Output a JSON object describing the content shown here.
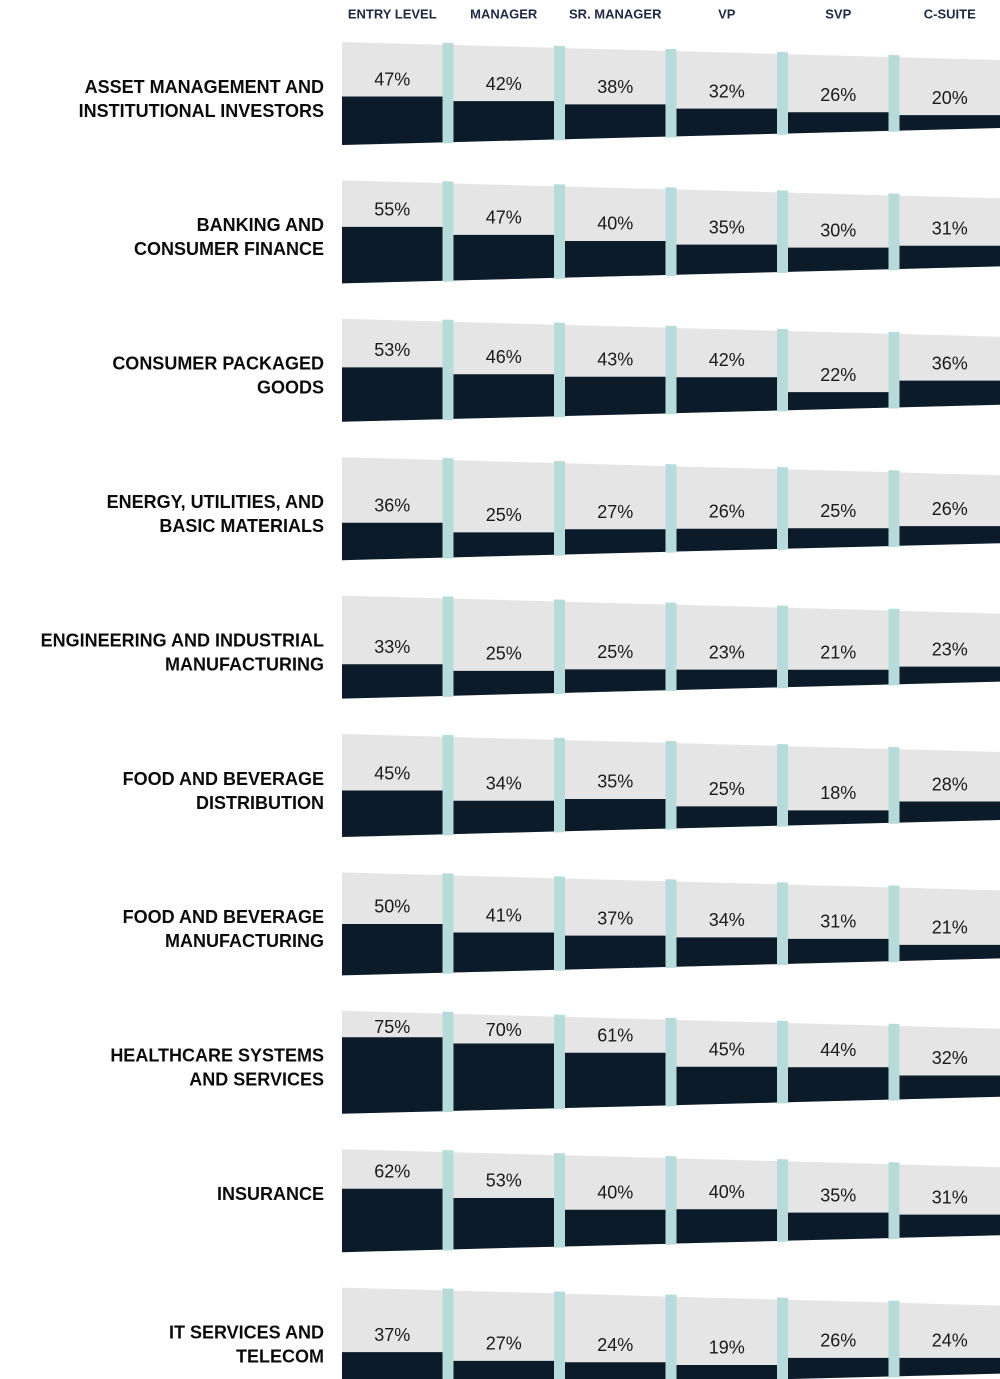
{
  "chart_data": {
    "type": "pipeline",
    "categories": [
      "ENTRY LEVEL",
      "MANAGER",
      "SR. MANAGER",
      "VP",
      "SVP",
      "C-SUITE"
    ],
    "colors": {
      "fill": "#0c1b2a",
      "background": "#e5e5e5",
      "separator": "#b7dadb"
    },
    "series": [
      {
        "name": [
          "ASSET MANAGEMENT AND",
          "INSTITUTIONAL INVESTORS"
        ],
        "values": [
          47,
          42,
          38,
          32,
          26,
          20
        ],
        "value_labels": [
          "47%",
          "42%",
          "38%",
          "32%",
          "26%",
          "20%"
        ]
      },
      {
        "name": [
          "BANKING AND",
          "CONSUMER FINANCE"
        ],
        "values": [
          55,
          47,
          40,
          35,
          30,
          31
        ],
        "value_labels": [
          "55%",
          "47%",
          "40%",
          "35%",
          "30%",
          "31%"
        ]
      },
      {
        "name": [
          "CONSUMER PACKAGED",
          "GOODS"
        ],
        "values": [
          53,
          46,
          43,
          42,
          22,
          36
        ],
        "value_labels": [
          "53%",
          "46%",
          "43%",
          "42%",
          "22%",
          "36%"
        ]
      },
      {
        "name": [
          "ENERGY, UTILITIES, AND",
          "BASIC MATERIALS"
        ],
        "values": [
          36,
          25,
          27,
          26,
          25,
          26
        ],
        "value_labels": [
          "36%",
          "25%",
          "27%",
          "26%",
          "25%",
          "26%"
        ]
      },
      {
        "name": [
          "ENGINEERING AND INDUSTRIAL",
          "MANUFACTURING"
        ],
        "values": [
          33,
          25,
          25,
          23,
          21,
          23
        ],
        "value_labels": [
          "33%",
          "25%",
          "25%",
          "23%",
          "21%",
          "23%"
        ]
      },
      {
        "name": [
          "FOOD AND BEVERAGE",
          "DISTRIBUTION"
        ],
        "values": [
          45,
          34,
          35,
          25,
          18,
          28
        ],
        "value_labels": [
          "45%",
          "34%",
          "35%",
          "25%",
          "18%",
          "28%"
        ]
      },
      {
        "name": [
          "FOOD AND BEVERAGE",
          "MANUFACTURING"
        ],
        "values": [
          50,
          41,
          37,
          34,
          31,
          21
        ],
        "value_labels": [
          "50%",
          "41%",
          "37%",
          "34%",
          "31%",
          "21%"
        ]
      },
      {
        "name": [
          "HEALTHCARE SYSTEMS",
          "AND SERVICES"
        ],
        "values": [
          75,
          70,
          61,
          45,
          44,
          32
        ],
        "value_labels": [
          "75%",
          "70%",
          "61%",
          "45%",
          "44%",
          "32%"
        ]
      },
      {
        "name": [
          "INSURANCE"
        ],
        "values": [
          62,
          53,
          40,
          40,
          35,
          31
        ],
        "value_labels": [
          "62%",
          "53%",
          "40%",
          "40%",
          "35%",
          "31%"
        ]
      },
      {
        "name": [
          "IT SERVICES AND",
          "TELECOM"
        ],
        "values": [
          37,
          27,
          24,
          19,
          26,
          24
        ],
        "value_labels": [
          "37%",
          "27%",
          "24%",
          "19%",
          "26%",
          "24%"
        ]
      }
    ]
  }
}
